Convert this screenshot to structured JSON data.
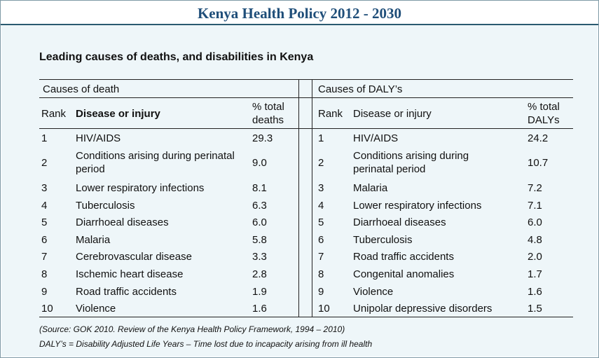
{
  "doc_title": "Kenya Health Policy 2012 - 2030",
  "table_caption": "Leading causes of deaths, and disabilities in Kenya",
  "left": {
    "section_title": "Causes of death",
    "header": {
      "rank": "Rank",
      "disease": "Disease or injury",
      "pct_line1": "% total",
      "pct_line2": "deaths"
    },
    "rows": [
      {
        "rank": "1",
        "disease": "HIV/AIDS",
        "pct": "29.3"
      },
      {
        "rank": "2",
        "disease": "Conditions arising during perinatal period",
        "pct": "9.0"
      },
      {
        "rank": "3",
        "disease": "Lower respiratory infections",
        "pct": "8.1"
      },
      {
        "rank": "4",
        "disease": "Tuberculosis",
        "pct": "6.3"
      },
      {
        "rank": "5",
        "disease": "Diarrhoeal diseases",
        "pct": "6.0"
      },
      {
        "rank": "6",
        "disease": "Malaria",
        "pct": "5.8"
      },
      {
        "rank": "7",
        "disease": "Cerebrovascular disease",
        "pct": "3.3"
      },
      {
        "rank": "8",
        "disease": "Ischemic heart disease",
        "pct": "2.8"
      },
      {
        "rank": "9",
        "disease": "Road traffic accidents",
        "pct": "1.9"
      },
      {
        "rank": "10",
        "disease": "Violence",
        "pct": "1.6"
      }
    ]
  },
  "right": {
    "section_title": "Causes of DALY’s",
    "header": {
      "rank": "Rank",
      "disease": "Disease or injury",
      "pct_line1": "% total",
      "pct_line2": "DALYs"
    },
    "rows": [
      {
        "rank": "1",
        "disease": "HIV/AIDS",
        "pct": "24.2"
      },
      {
        "rank": "2",
        "disease": "Conditions arising during perinatal period",
        "pct": "10.7"
      },
      {
        "rank": "3",
        "disease": "Malaria",
        "pct": "7.2"
      },
      {
        "rank": "4",
        "disease": "Lower respiratory infections",
        "pct": "7.1"
      },
      {
        "rank": "5",
        "disease": "Diarrhoeal diseases",
        "pct": "6.0"
      },
      {
        "rank": "6",
        "disease": "Tuberculosis",
        "pct": "4.8"
      },
      {
        "rank": "7",
        "disease": "Road traffic accidents",
        "pct": "2.0"
      },
      {
        "rank": "8",
        "disease": "Congenital anomalies",
        "pct": "1.7"
      },
      {
        "rank": "9",
        "disease": "Violence",
        "pct": "1.6"
      },
      {
        "rank": "10",
        "disease": "Unipolar depressive disorders",
        "pct": "1.5"
      }
    ]
  },
  "source_line1": "(Source: GOK 2010. Review of the Kenya Health Policy Framework, 1994 – 2010)",
  "source_line2": "DALY’s = Disability Adjusted Life Years – Time lost due to incapacity arising from ill health"
}
